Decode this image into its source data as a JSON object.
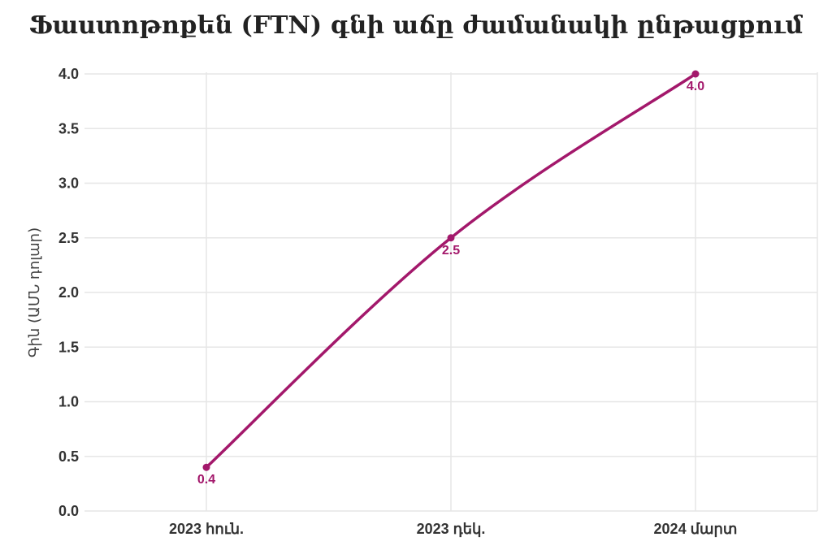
{
  "chart_data": {
    "type": "line",
    "title": "Ֆաստոթոքեն (FTN) գնի աճը ժամանակի ընթացքում",
    "xlabel": "",
    "ylabel": "Գին (ԱՄՆ դոլար)",
    "categories": [
      "2023 հուն.",
      "2023 դեկ.",
      "2024 մարտ"
    ],
    "series": [
      {
        "values": [
          0.4,
          2.5,
          4.0
        ],
        "data_labels": [
          "0.4",
          "2.5",
          "4.0"
        ]
      }
    ],
    "ylim": [
      0,
      4
    ],
    "yticks": [
      "0.0",
      "0.5",
      "1.0",
      "1.5",
      "2.0",
      "2.5",
      "3.0",
      "3.5",
      "4.0"
    ],
    "grid": true,
    "line_color": "#a3186b"
  }
}
